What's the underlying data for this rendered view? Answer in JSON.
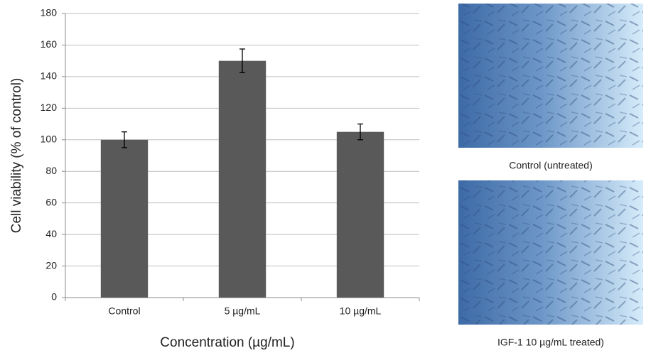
{
  "chart_data": {
    "type": "bar",
    "categories": [
      "Control",
      "5 µg/mL",
      "10 µg/mL"
    ],
    "values": [
      100,
      150,
      105
    ],
    "errors": [
      5,
      7.5,
      5
    ],
    "color": "#595959",
    "ylabel": "Cell viability (% of control)",
    "xlabel": "Concentration (µg/mL)",
    "ylim": [
      0,
      180
    ],
    "yticks": [
      0,
      20,
      40,
      60,
      80,
      100,
      120,
      140,
      160,
      180
    ],
    "grid": true
  },
  "panels": [
    {
      "caption": "Control (untreated)"
    },
    {
      "caption": "IGF-1 10 µg/mL treated)"
    }
  ]
}
